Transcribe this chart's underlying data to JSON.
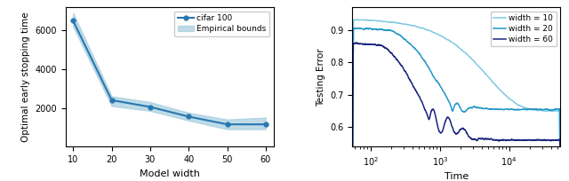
{
  "left": {
    "x": [
      10,
      20,
      30,
      40,
      50,
      60
    ],
    "y": [
      6500,
      2400,
      2050,
      1550,
      1150,
      1150
    ],
    "y_upper": [
      6900,
      2600,
      2300,
      1750,
      1400,
      1500
    ],
    "y_lower": [
      6200,
      2100,
      1850,
      1350,
      900,
      900
    ],
    "line_color": "#2878b0",
    "fill_color": "#a8cfe0",
    "xlabel": "Model width",
    "ylabel": "Optimal early stopping time",
    "legend_line": "cifar 100",
    "legend_fill": "Empirical bounds",
    "xlim": [
      8,
      62
    ],
    "ylim": [
      0,
      7200
    ],
    "yticks": [
      2000,
      4000,
      6000
    ]
  },
  "right": {
    "width10": {
      "color": "#7ec8e3",
      "label": "width = 10"
    },
    "width20": {
      "color": "#2196c8",
      "label": "width = 20"
    },
    "width60": {
      "color": "#1a237e",
      "label": "width = 60"
    },
    "xlabel": "Time",
    "ylabel": "Testing Error",
    "xlim": [
      55,
      55000
    ],
    "ylim": [
      0.54,
      0.97
    ],
    "yticks": [
      0.6,
      0.7,
      0.8,
      0.9
    ]
  }
}
